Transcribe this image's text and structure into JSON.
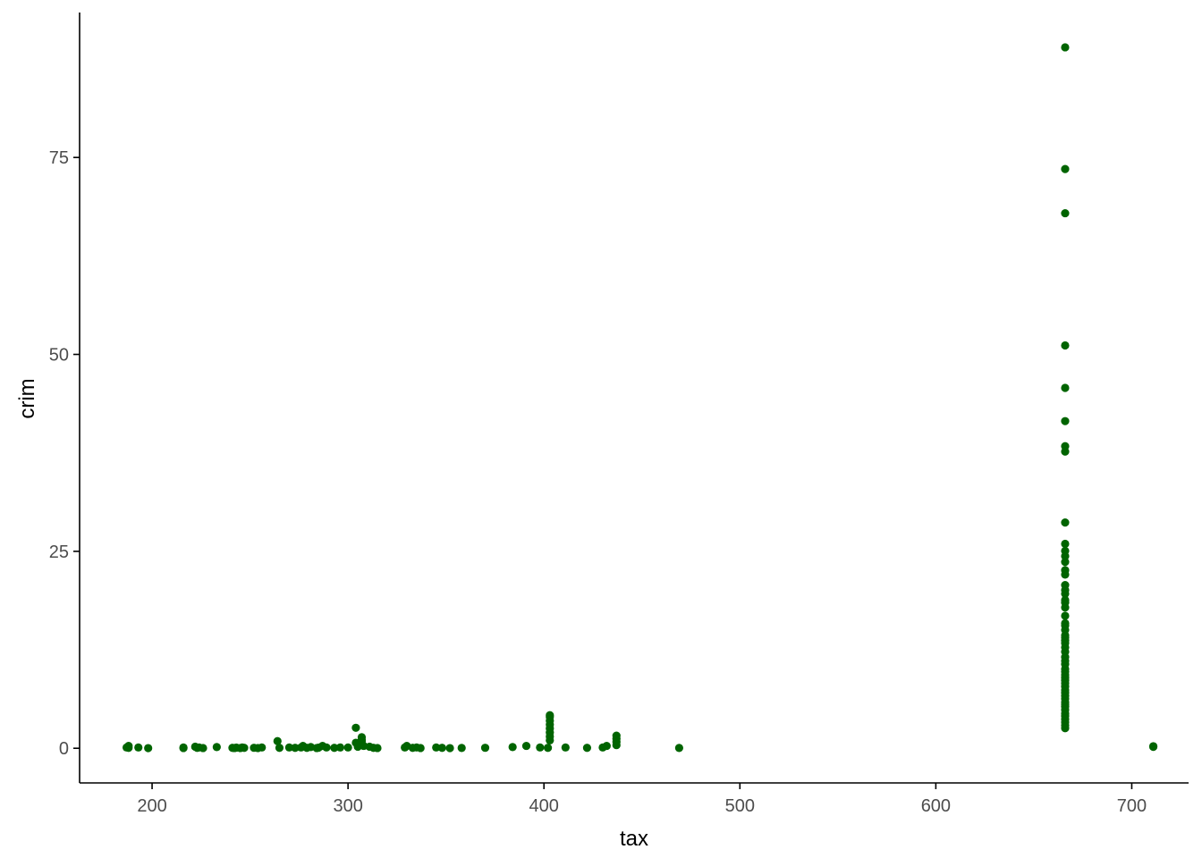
{
  "chart_data": {
    "type": "scatter",
    "title": "",
    "xlabel": "tax",
    "ylabel": "crim",
    "xlim": [
      163,
      729
    ],
    "ylim": [
      -4.4,
      93.4
    ],
    "xticks": [
      200,
      300,
      400,
      500,
      600,
      700
    ],
    "yticks": [
      0,
      25,
      50,
      75
    ],
    "grid": false,
    "legend": "none",
    "point_color": "#006400",
    "points": [
      [
        187,
        0.1
      ],
      [
        188,
        0.3
      ],
      [
        188,
        0.05
      ],
      [
        193,
        0.1
      ],
      [
        198,
        0.02
      ],
      [
        216,
        0.1
      ],
      [
        216,
        0.03
      ],
      [
        222,
        0.2
      ],
      [
        223,
        0.05
      ],
      [
        224,
        0.1
      ],
      [
        226,
        0.03
      ],
      [
        233,
        0.15
      ],
      [
        241,
        0.05
      ],
      [
        242,
        0.03
      ],
      [
        243,
        0.08
      ],
      [
        245,
        0.03
      ],
      [
        246,
        0.1
      ],
      [
        247,
        0.05
      ],
      [
        252,
        0.06
      ],
      [
        254,
        0.03
      ],
      [
        256,
        0.1
      ],
      [
        264,
        0.9
      ],
      [
        265,
        0.05
      ],
      [
        270,
        0.1
      ],
      [
        273,
        0.05
      ],
      [
        276,
        0.1
      ],
      [
        277,
        0.3
      ],
      [
        279,
        0.05
      ],
      [
        281,
        0.15
      ],
      [
        284,
        0.03
      ],
      [
        285,
        0.08
      ],
      [
        287,
        0.3
      ],
      [
        289,
        0.1
      ],
      [
        293,
        0.05
      ],
      [
        296,
        0.1
      ],
      [
        300,
        0.1
      ],
      [
        304,
        2.6
      ],
      [
        304,
        0.7
      ],
      [
        305,
        0.2
      ],
      [
        307,
        1.4
      ],
      [
        307,
        0.9
      ],
      [
        307,
        0.5
      ],
      [
        307,
        1.1
      ],
      [
        308,
        0.3
      ],
      [
        311,
        0.2
      ],
      [
        313,
        0.05
      ],
      [
        315,
        0.03
      ],
      [
        329,
        0.1
      ],
      [
        330,
        0.3
      ],
      [
        333,
        0.05
      ],
      [
        335,
        0.1
      ],
      [
        337,
        0.03
      ],
      [
        345,
        0.1
      ],
      [
        348,
        0.05
      ],
      [
        352,
        0.02
      ],
      [
        358,
        0.04
      ],
      [
        370,
        0.06
      ],
      [
        384,
        0.15
      ],
      [
        391,
        0.3
      ],
      [
        398,
        0.1
      ],
      [
        402,
        0.05
      ],
      [
        403,
        1.0
      ],
      [
        403,
        1.5
      ],
      [
        403,
        2.0
      ],
      [
        403,
        2.5
      ],
      [
        403,
        3.0
      ],
      [
        403,
        3.5
      ],
      [
        403,
        4.0
      ],
      [
        403,
        4.2
      ],
      [
        411,
        0.1
      ],
      [
        422,
        0.05
      ],
      [
        430,
        0.1
      ],
      [
        432,
        0.3
      ],
      [
        437,
        0.4
      ],
      [
        437,
        0.8
      ],
      [
        437,
        1.2
      ],
      [
        437,
        1.6
      ],
      [
        469,
        0.04
      ],
      [
        666,
        88.98
      ],
      [
        666,
        73.53
      ],
      [
        666,
        67.92
      ],
      [
        666,
        51.14
      ],
      [
        666,
        45.75
      ],
      [
        666,
        41.53
      ],
      [
        666,
        38.35
      ],
      [
        666,
        37.66
      ],
      [
        666,
        28.66
      ],
      [
        666,
        25.95
      ],
      [
        666,
        25.05
      ],
      [
        666,
        24.39
      ],
      [
        666,
        23.65
      ],
      [
        666,
        22.6
      ],
      [
        666,
        22.05
      ],
      [
        666,
        20.72
      ],
      [
        666,
        20.08
      ],
      [
        666,
        19.61
      ],
      [
        666,
        18.81
      ],
      [
        666,
        18.5
      ],
      [
        666,
        17.87
      ],
      [
        666,
        16.81
      ],
      [
        666,
        15.87
      ],
      [
        666,
        15.58
      ],
      [
        666,
        15.02
      ],
      [
        666,
        14.33
      ],
      [
        666,
        14.05
      ],
      [
        666,
        13.68
      ],
      [
        666,
        13.36
      ],
      [
        666,
        12.8
      ],
      [
        666,
        12.25
      ],
      [
        666,
        11.58
      ],
      [
        666,
        11.1
      ],
      [
        666,
        10.67
      ],
      [
        666,
        10.06
      ],
      [
        666,
        9.72
      ],
      [
        666,
        9.33
      ],
      [
        666,
        8.98
      ],
      [
        666,
        8.64
      ],
      [
        666,
        8.25
      ],
      [
        666,
        7.84
      ],
      [
        666,
        7.4
      ],
      [
        666,
        7.05
      ],
      [
        666,
        6.65
      ],
      [
        666,
        6.28
      ],
      [
        666,
        5.87
      ],
      [
        666,
        5.58
      ],
      [
        666,
        5.29
      ],
      [
        666,
        4.87
      ],
      [
        666,
        4.42
      ],
      [
        666,
        4.1
      ],
      [
        666,
        3.68
      ],
      [
        666,
        3.32
      ],
      [
        666,
        2.92
      ],
      [
        666,
        2.55
      ],
      [
        711,
        0.26
      ],
      [
        711,
        0.18
      ]
    ]
  }
}
